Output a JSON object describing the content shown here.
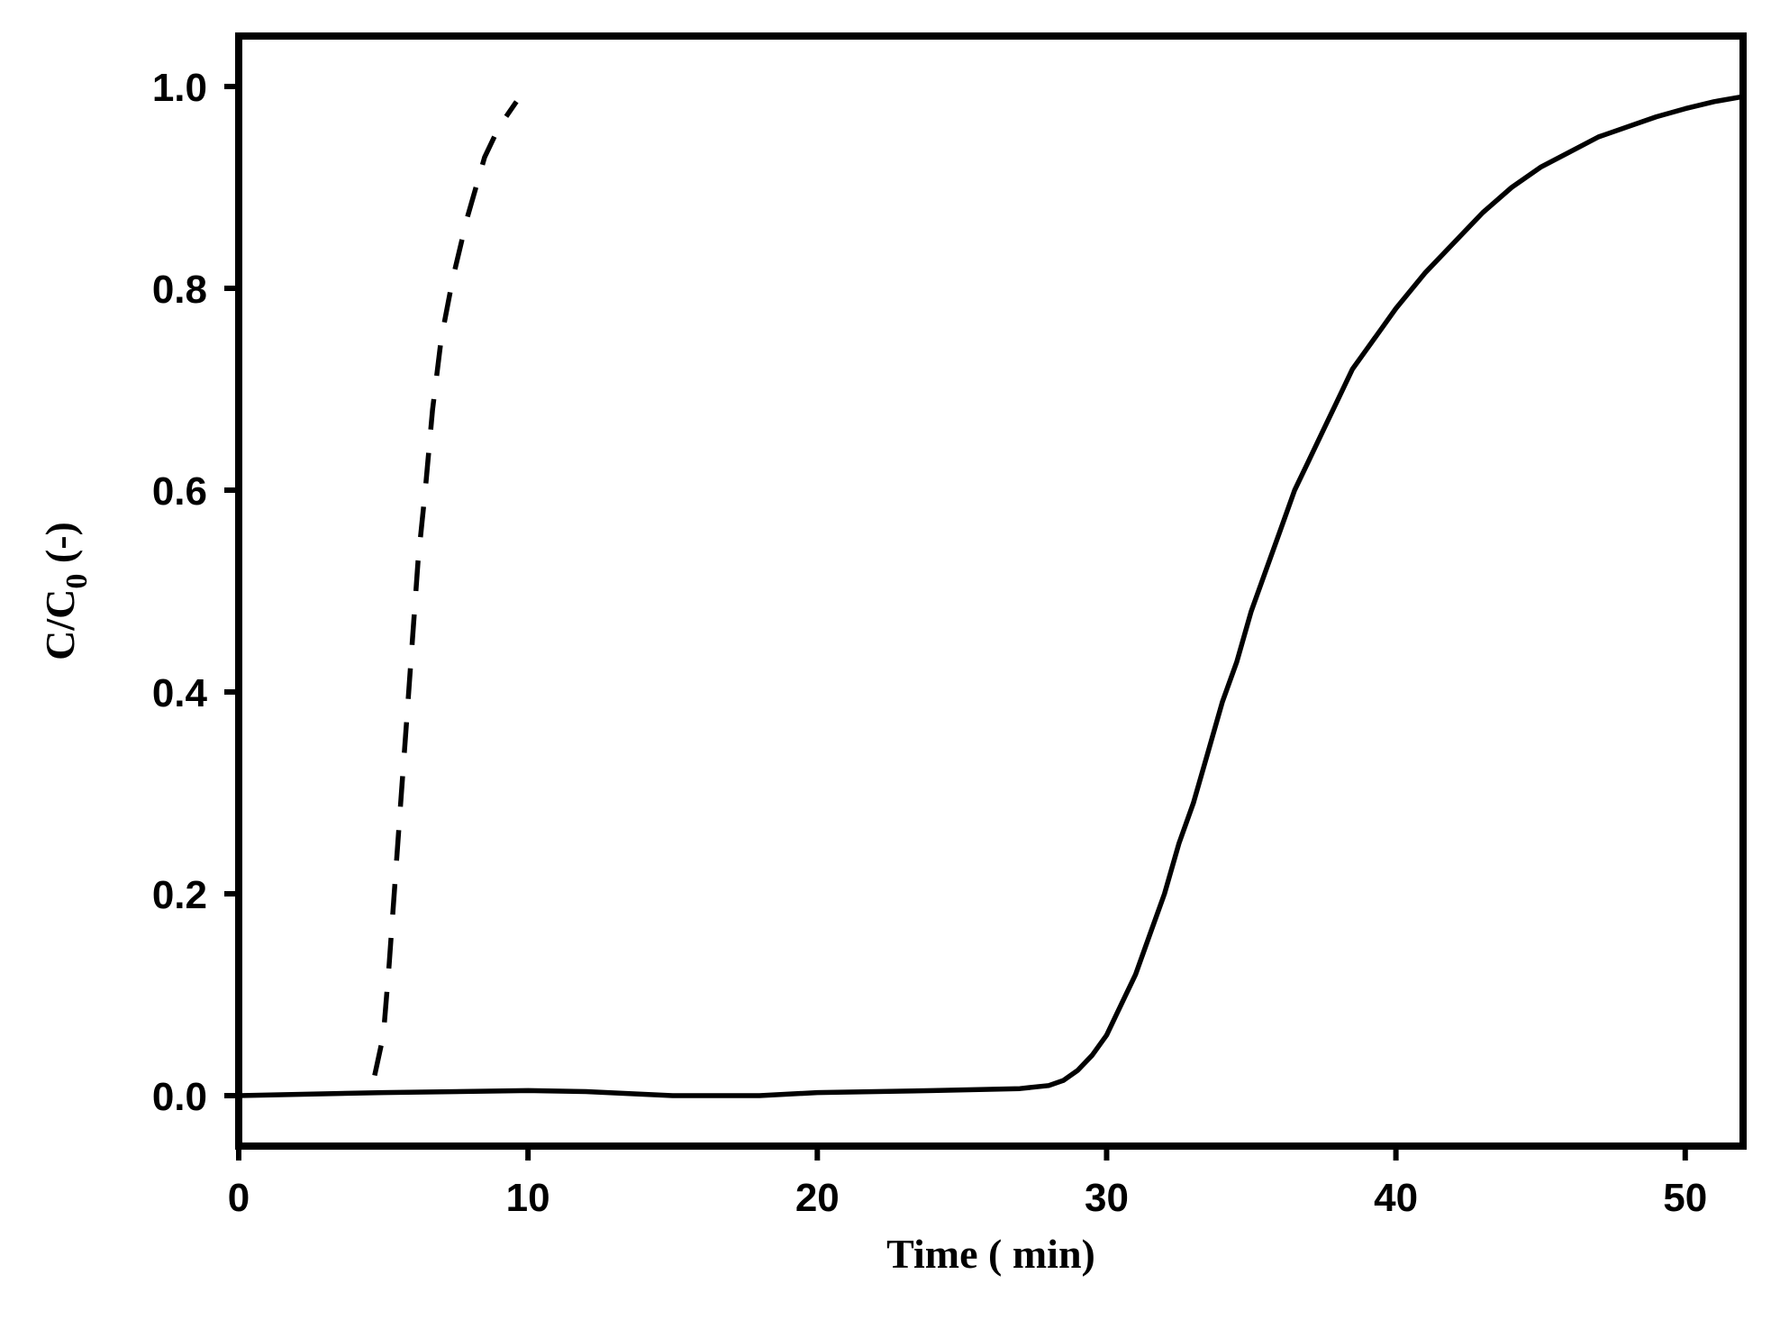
{
  "chart_data": {
    "type": "line",
    "xlabel": "Time ( min)",
    "ylabel_main": "C/C",
    "ylabel_sub": "0",
    "ylabel_tail": " (-)",
    "xlim": [
      0,
      52
    ],
    "ylim": [
      -0.05,
      1.05
    ],
    "xticks": [
      0,
      10,
      20,
      30,
      40,
      50
    ],
    "xtick_labels": [
      "0",
      "10",
      "20",
      "30",
      "40",
      "50"
    ],
    "yticks": [
      0.0,
      0.2,
      0.4,
      0.6,
      0.8,
      1.0
    ],
    "ytick_labels": [
      "0.0",
      "0.2",
      "0.4",
      "0.6",
      "0.8",
      "1.0"
    ],
    "grid": false,
    "legend": "none",
    "series": [
      {
        "style": "dashed",
        "color": "#000000",
        "points": [
          [
            4.7,
            0.02
          ],
          [
            5.0,
            0.06
          ],
          [
            5.2,
            0.13
          ],
          [
            5.4,
            0.21
          ],
          [
            5.6,
            0.29
          ],
          [
            5.8,
            0.37
          ],
          [
            6.0,
            0.45
          ],
          [
            6.2,
            0.53
          ],
          [
            6.45,
            0.6
          ],
          [
            6.7,
            0.68
          ],
          [
            7.0,
            0.75
          ],
          [
            7.4,
            0.81
          ],
          [
            7.9,
            0.87
          ],
          [
            8.5,
            0.93
          ],
          [
            9.0,
            0.96
          ],
          [
            9.6,
            0.985
          ]
        ]
      },
      {
        "style": "solid",
        "color": "#000000",
        "points": [
          [
            0,
            0.0
          ],
          [
            5,
            0.003
          ],
          [
            10,
            0.005
          ],
          [
            12,
            0.004
          ],
          [
            15,
            0.0
          ],
          [
            18,
            0.0
          ],
          [
            20,
            0.003
          ],
          [
            24,
            0.005
          ],
          [
            27,
            0.007
          ],
          [
            28,
            0.01
          ],
          [
            28.5,
            0.015
          ],
          [
            29,
            0.025
          ],
          [
            29.5,
            0.04
          ],
          [
            30,
            0.06
          ],
          [
            30.5,
            0.09
          ],
          [
            31,
            0.12
          ],
          [
            31.5,
            0.16
          ],
          [
            32,
            0.2
          ],
          [
            32.5,
            0.25
          ],
          [
            33,
            0.29
          ],
          [
            33.5,
            0.34
          ],
          [
            34,
            0.39
          ],
          [
            34.5,
            0.43
          ],
          [
            35,
            0.48
          ],
          [
            35.5,
            0.52
          ],
          [
            36,
            0.56
          ],
          [
            36.5,
            0.6
          ],
          [
            37,
            0.63
          ],
          [
            37.5,
            0.66
          ],
          [
            38,
            0.69
          ],
          [
            38.5,
            0.72
          ],
          [
            39,
            0.74
          ],
          [
            39.5,
            0.76
          ],
          [
            40,
            0.78
          ],
          [
            41,
            0.815
          ],
          [
            42,
            0.845
          ],
          [
            43,
            0.875
          ],
          [
            44,
            0.9
          ],
          [
            45,
            0.92
          ],
          [
            46,
            0.935
          ],
          [
            47,
            0.95
          ],
          [
            48,
            0.96
          ],
          [
            49,
            0.97
          ],
          [
            50,
            0.978
          ],
          [
            51,
            0.985
          ],
          [
            52,
            0.99
          ]
        ]
      }
    ]
  }
}
